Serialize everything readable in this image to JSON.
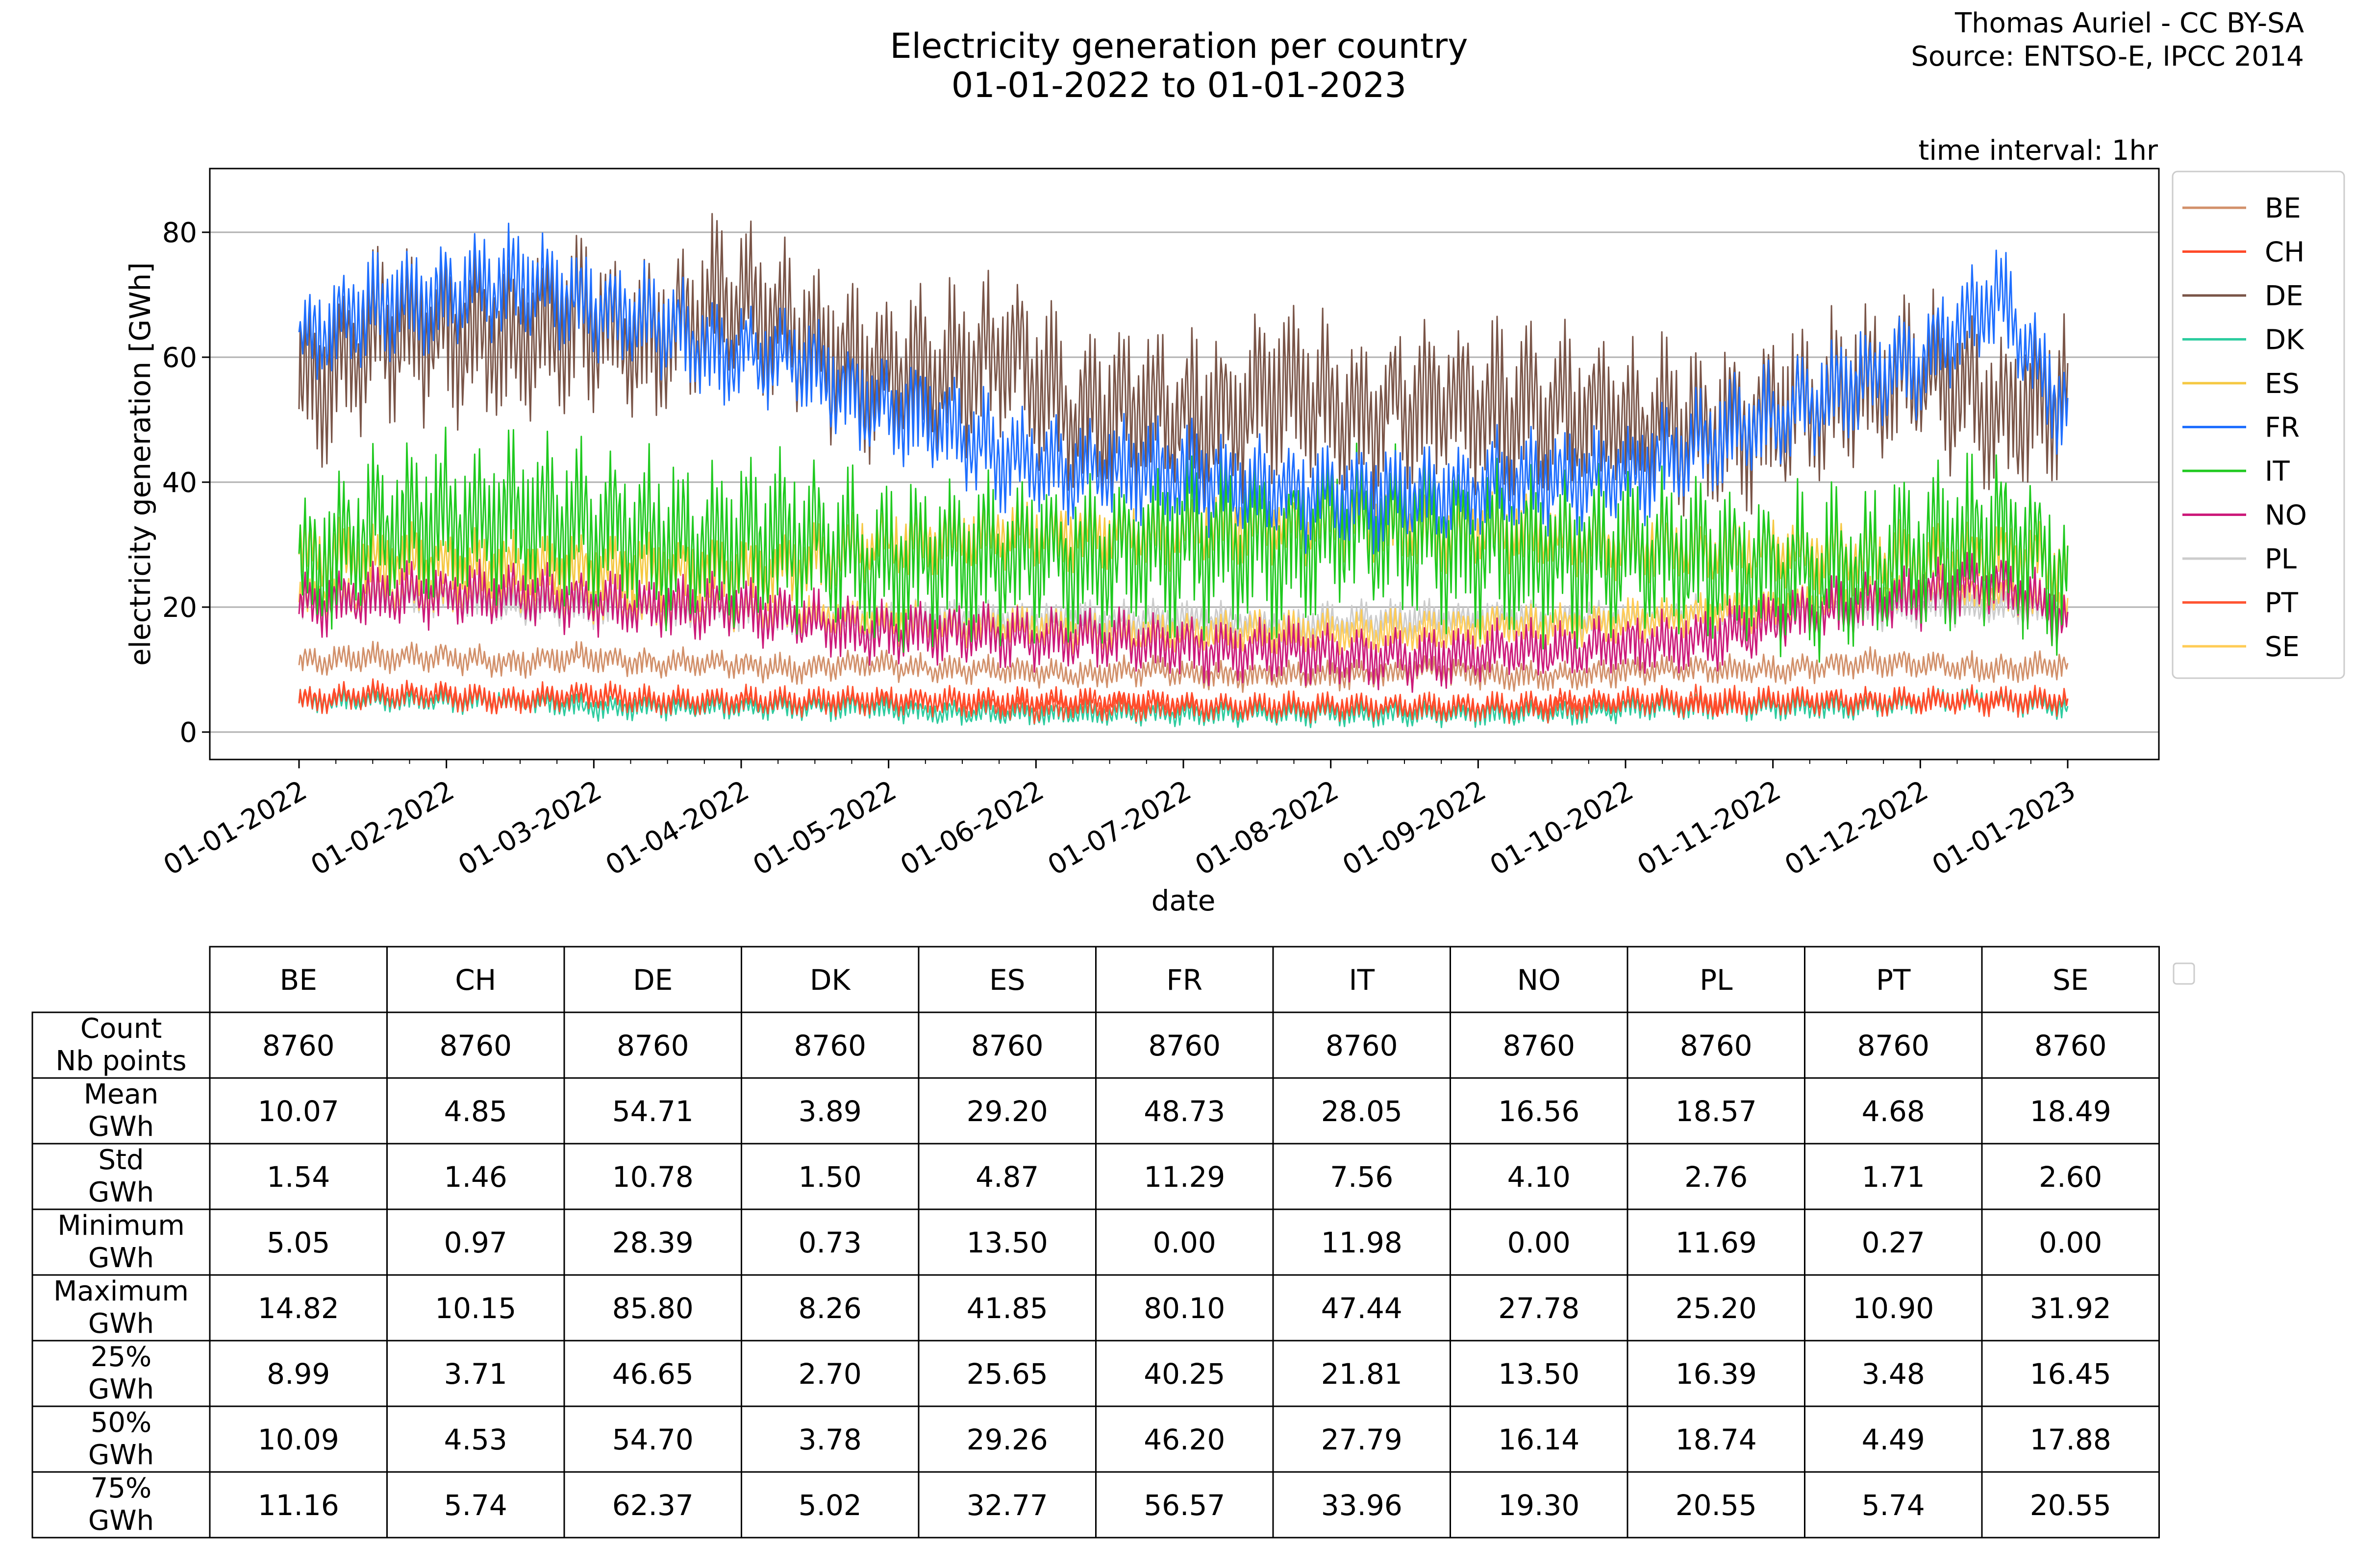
{
  "header": {
    "title_line1": "Electricity generation per country",
    "title_line2": "01-01-2022 to 01-01-2023",
    "credit_line1": "Thomas Auriel - CC BY-SA",
    "credit_line2": "Source: ENTSO-E, IPCC 2014",
    "interval_note": "time interval: 1hr"
  },
  "chart_data": {
    "type": "line",
    "title": "Electricity generation per country\n01-01-2022 to 01-01-2023",
    "xlabel": "date",
    "ylabel": "electricity generation [GWh]",
    "x_range": [
      "2022-01-01",
      "2023-01-01"
    ],
    "ylim": [
      -4,
      90
    ],
    "yticks": [
      0,
      20,
      40,
      60,
      80
    ],
    "xticks": [
      "01-01-2022",
      "01-02-2022",
      "01-03-2022",
      "01-04-2022",
      "01-05-2022",
      "01-06-2022",
      "01-07-2022",
      "01-08-2022",
      "01-09-2022",
      "01-10-2022",
      "01-11-2022",
      "01-12-2022",
      "01-01-2023"
    ],
    "grid": "horizontal",
    "legend_position": "right",
    "series": [
      {
        "name": "BE",
        "color": "#d2906a",
        "values": [
          11,
          12,
          12,
          11,
          12,
          11,
          11,
          10,
          11,
          10,
          10,
          9,
          10,
          9,
          9,
          9,
          10,
          9,
          9,
          10,
          10,
          10,
          11,
          11,
          10,
          11
        ]
      },
      {
        "name": "CH",
        "color": "#ff4a2a",
        "values": [
          5,
          6,
          6,
          5,
          6,
          5,
          5,
          5,
          5,
          5,
          5,
          5,
          5,
          4,
          4,
          4,
          4,
          4,
          5,
          5,
          4,
          5,
          5,
          5,
          5,
          5
        ]
      },
      {
        "name": "DE",
        "color": "#7a5548",
        "values": [
          55,
          63,
          64,
          62,
          66,
          62,
          70,
          64,
          58,
          57,
          61,
          50,
          52,
          50,
          55,
          50,
          54,
          52,
          51,
          50,
          48,
          51,
          55,
          58,
          50,
          55
        ]
      },
      {
        "name": "DK",
        "color": "#2ecc9f",
        "values": [
          5,
          5,
          5,
          5,
          4,
          4,
          4,
          4,
          4,
          3,
          3,
          3,
          3,
          3,
          3,
          3,
          3,
          3,
          3,
          4,
          4,
          4,
          4,
          5,
          5,
          4
        ]
      },
      {
        "name": "ES",
        "color": "#f5c842",
        "values": [
          29,
          27,
          27,
          26,
          26,
          26,
          25,
          26,
          30,
          31,
          32,
          32,
          32,
          33,
          33,
          34,
          32,
          32,
          31,
          30,
          29,
          29,
          28,
          27,
          28,
          27
        ]
      },
      {
        "name": "FR",
        "color": "#1f6fff",
        "values": [
          62,
          68,
          70,
          72,
          69,
          66,
          60,
          60,
          52,
          50,
          44,
          42,
          42,
          40,
          38,
          38,
          38,
          40,
          40,
          42,
          47,
          51,
          56,
          60,
          70,
          50
        ]
      },
      {
        "name": "IT",
        "color": "#1fc91f",
        "values": [
          25,
          32,
          34,
          34,
          33,
          31,
          30,
          31,
          27,
          28,
          28,
          28,
          29,
          30,
          30,
          33,
          31,
          29,
          28,
          28,
          27,
          26,
          26,
          29,
          32,
          25
        ]
      },
      {
        "name": "NO",
        "color": "#cc1a7a",
        "values": [
          20,
          22,
          22,
          22,
          21,
          20,
          20,
          18,
          16,
          16,
          15,
          15,
          14,
          13,
          13,
          12,
          12,
          13,
          13,
          14,
          15,
          18,
          20,
          22,
          24,
          18
        ]
      },
      {
        "name": "PL",
        "color": "#cccccc",
        "values": [
          20,
          21,
          21,
          20,
          20,
          19,
          19,
          18,
          18,
          18,
          18,
          18,
          18,
          18,
          17,
          18,
          18,
          18,
          18,
          18,
          19,
          19,
          19,
          20,
          20,
          19
        ]
      },
      {
        "name": "PT",
        "color": "#ff5533",
        "values": [
          5,
          6,
          6,
          5,
          6,
          5,
          5,
          5,
          5,
          5,
          4,
          4,
          4,
          4,
          4,
          4,
          4,
          4,
          4,
          5,
          5,
          5,
          5,
          5,
          5,
          5
        ]
      },
      {
        "name": "SE",
        "color": "#ffcc55",
        "values": [
          21,
          22,
          22,
          22,
          21,
          20,
          20,
          19,
          18,
          17,
          17,
          16,
          16,
          16,
          16,
          16,
          16,
          17,
          17,
          18,
          19,
          20,
          21,
          22,
          22,
          20
        ]
      }
    ]
  },
  "stats_table": {
    "columns": [
      "BE",
      "CH",
      "DE",
      "DK",
      "ES",
      "FR",
      "IT",
      "NO",
      "PL",
      "PT",
      "SE"
    ],
    "rows": [
      {
        "label1": "Count",
        "label2": "Nb points",
        "values": [
          "8760",
          "8760",
          "8760",
          "8760",
          "8760",
          "8760",
          "8760",
          "8760",
          "8760",
          "8760",
          "8760"
        ]
      },
      {
        "label1": "Mean",
        "label2": "GWh",
        "values": [
          "10.07",
          "4.85",
          "54.71",
          "3.89",
          "29.20",
          "48.73",
          "28.05",
          "16.56",
          "18.57",
          "4.68",
          "18.49"
        ]
      },
      {
        "label1": "Std",
        "label2": "GWh",
        "values": [
          "1.54",
          "1.46",
          "10.78",
          "1.50",
          "4.87",
          "11.29",
          "7.56",
          "4.10",
          "2.76",
          "1.71",
          "2.60"
        ]
      },
      {
        "label1": "Minimum",
        "label2": "GWh",
        "values": [
          "5.05",
          "0.97",
          "28.39",
          "0.73",
          "13.50",
          "0.00",
          "11.98",
          "0.00",
          "11.69",
          "0.27",
          "0.00"
        ]
      },
      {
        "label1": "Maximum",
        "label2": "GWh",
        "values": [
          "14.82",
          "10.15",
          "85.80",
          "8.26",
          "41.85",
          "80.10",
          "47.44",
          "27.78",
          "25.20",
          "10.90",
          "31.92"
        ]
      },
      {
        "label1": "25%",
        "label2": "GWh",
        "values": [
          "8.99",
          "3.71",
          "46.65",
          "2.70",
          "25.65",
          "40.25",
          "21.81",
          "13.50",
          "16.39",
          "3.48",
          "16.45"
        ]
      },
      {
        "label1": "50%",
        "label2": "GWh",
        "values": [
          "10.09",
          "4.53",
          "54.70",
          "3.78",
          "29.26",
          "46.20",
          "27.79",
          "16.14",
          "18.74",
          "4.49",
          "17.88"
        ]
      },
      {
        "label1": "75%",
        "label2": "GWh",
        "values": [
          "11.16",
          "5.74",
          "62.37",
          "5.02",
          "32.77",
          "56.57",
          "33.96",
          "19.30",
          "20.55",
          "5.74",
          "20.55"
        ]
      }
    ]
  }
}
